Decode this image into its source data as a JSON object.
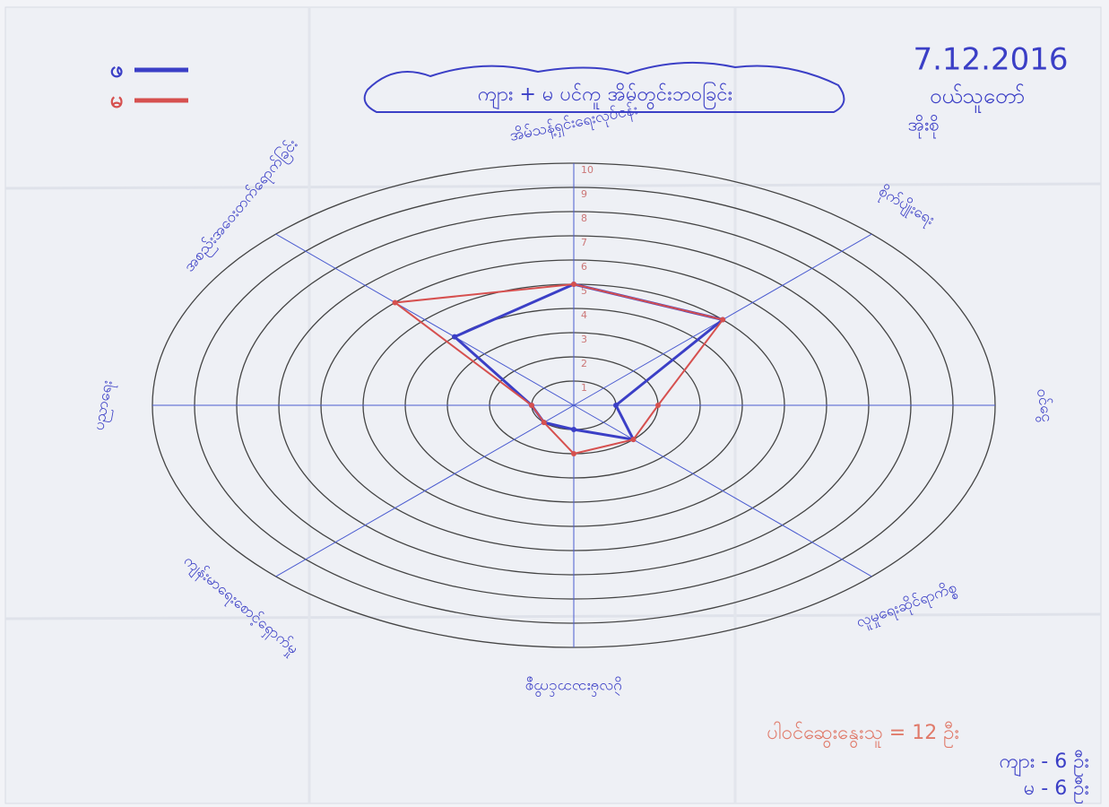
{
  "chart_data": {
    "type": "radar",
    "title": "ကျား + မ ပင်ကူ အိမ်တွင်းဘဝခြင်း",
    "date": "7.12.2016",
    "place": [
      "ဝယ်သူတော်",
      "အိုးစို"
    ],
    "categories": [
      "အိမ်သန့်ရှင်းရေးလုပ်ငန်း",
      "စိုက်ပျိုးရေး",
      "ဝင်ငွေ",
      "လူမှုရေးဆိုင်ရာကိစ္စ",
      "ပွဲလမ်းသဘင်ကိစ္စ",
      "ကျန်းမာရေးစောင့်ရှောက်မှု",
      "ပညာရေး",
      "အစည်းအဝေးတက်ရောက်ခြင်း"
    ],
    "series": [
      {
        "name": "ဖ",
        "color": "#3b3fc6",
        "values": [
          5,
          5,
          1,
          2,
          1,
          1,
          1,
          4
        ]
      },
      {
        "name": "မ",
        "color": "#d6504f",
        "values": [
          5,
          5,
          2,
          2,
          2,
          1,
          1,
          6
        ]
      }
    ],
    "rlim": [
      0,
      10
    ],
    "rticks": [
      1,
      2,
      3,
      4,
      5,
      6,
      7,
      8,
      9,
      10
    ],
    "notes": [
      "ပါဝင်ဆွေးနွေးသူ = 12 ဦး",
      "ကျား - 6 ဦး",
      "မ - 6 ဦး"
    ]
  }
}
